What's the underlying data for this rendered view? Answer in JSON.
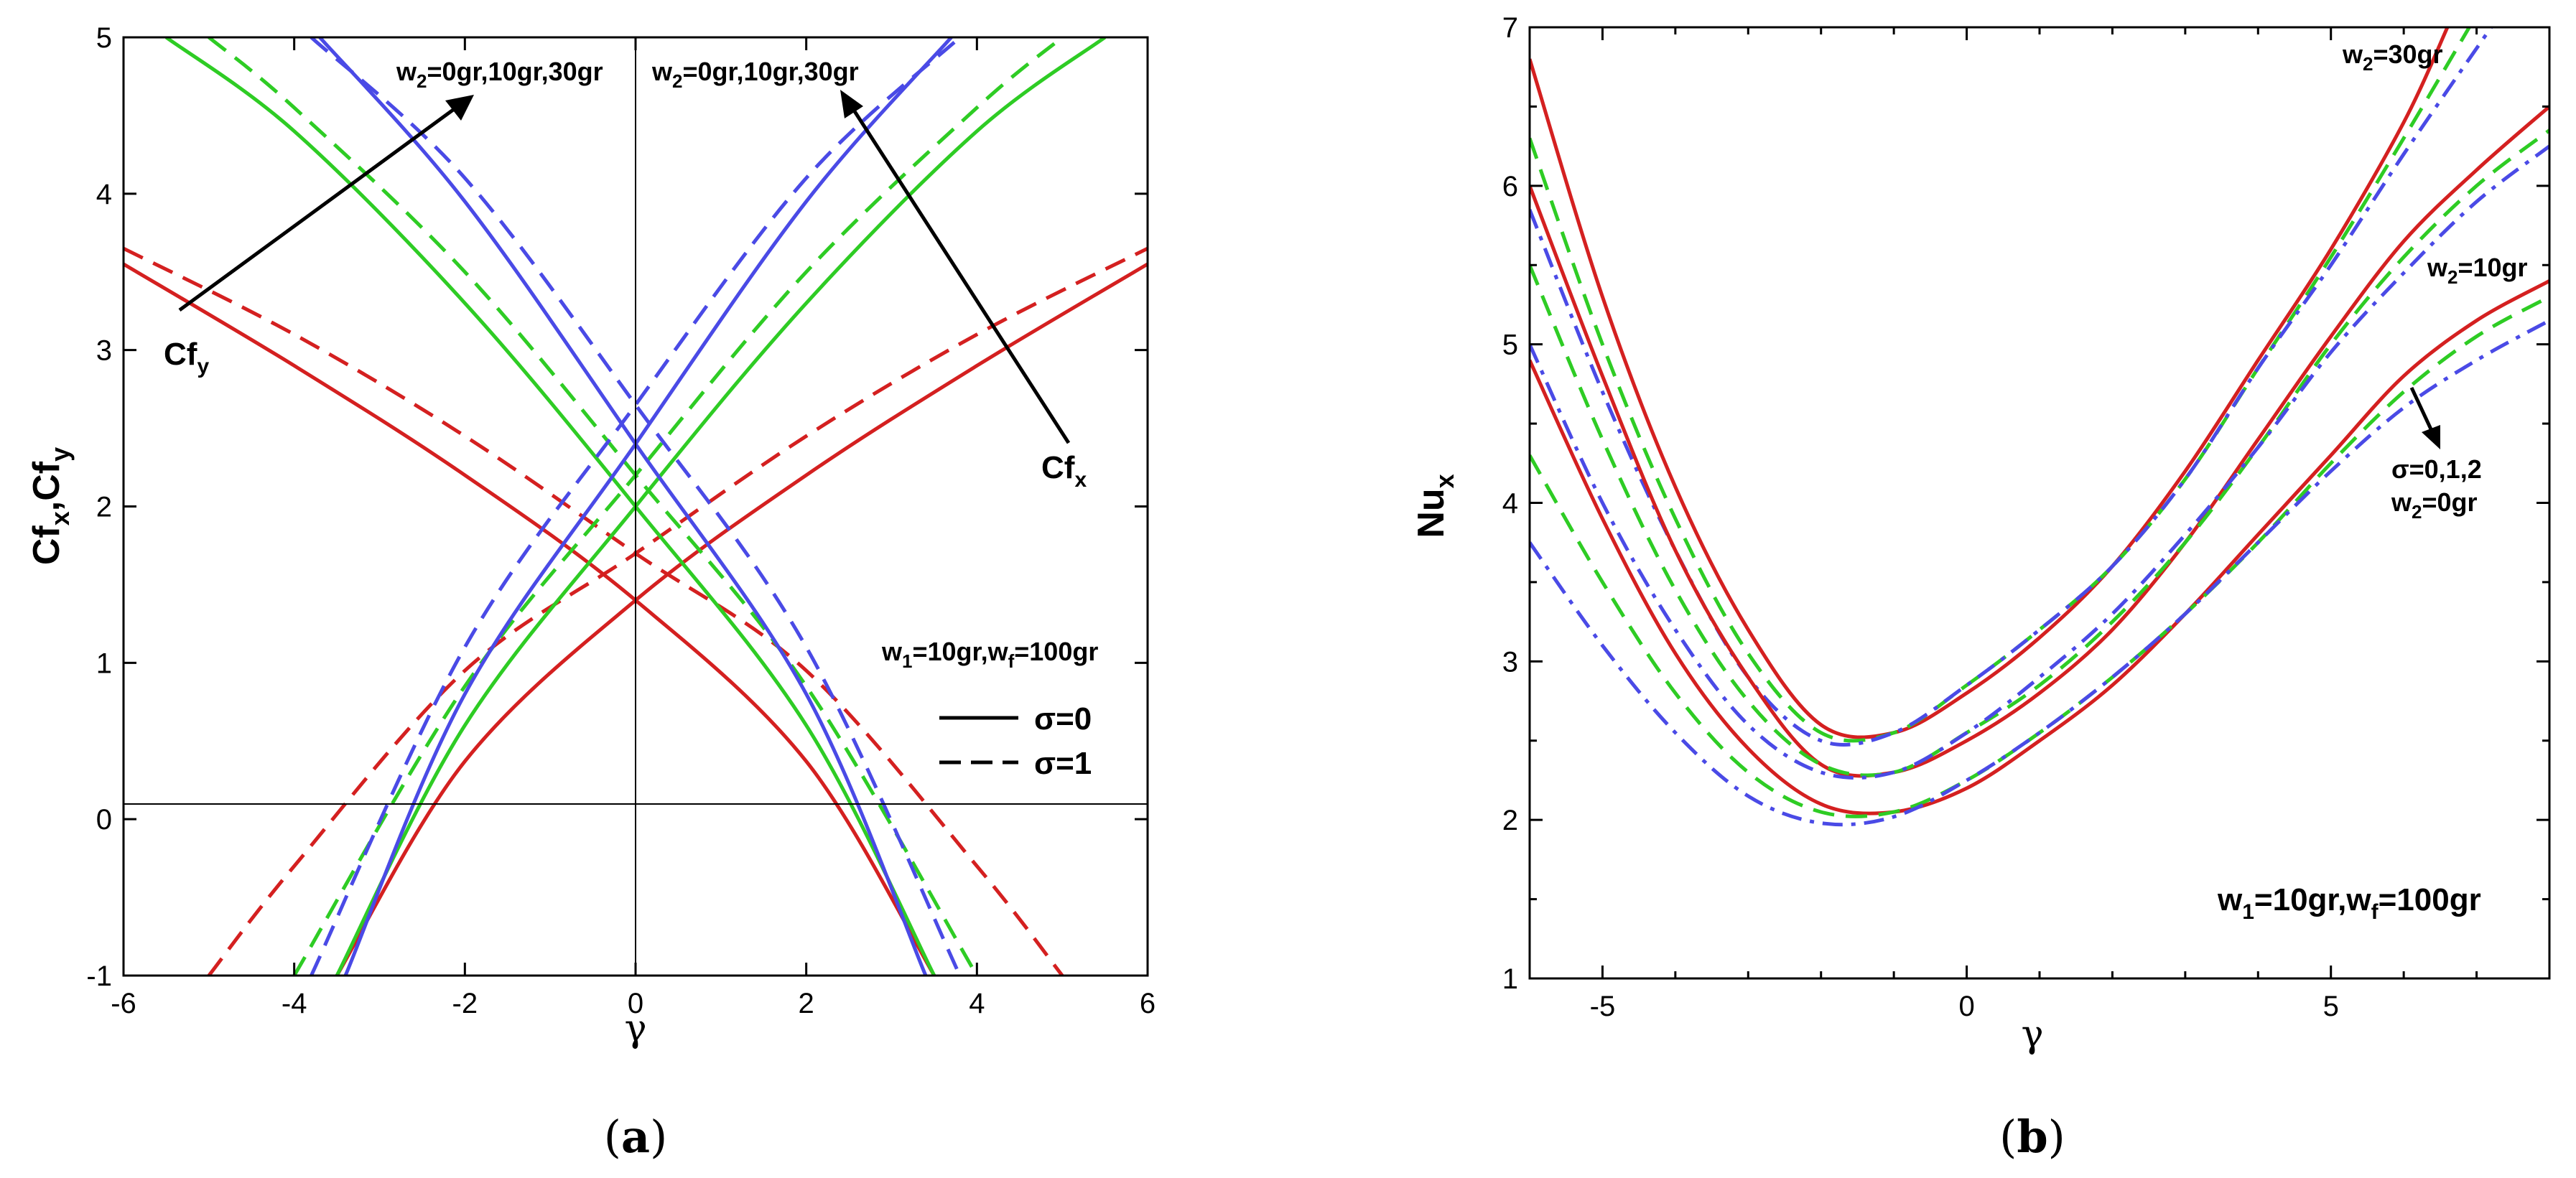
{
  "colors": {
    "red": "#d42020",
    "green": "#2ecc24",
    "blue": "#4a4ae6"
  },
  "chart_data": [
    {
      "type": "line",
      "panel_label": "(a)",
      "xlabel": "γ",
      "ylabel": "Cf",
      "ylabel_sub": "x",
      "ylabel_mid": ",Cf",
      "ylabel_sub2": "y",
      "xlim": [
        -6,
        6
      ],
      "ylim": [
        -1,
        5
      ],
      "xticks": [
        -6,
        -4,
        -2,
        0,
        2,
        4,
        6
      ],
      "yticks": [
        -1,
        0,
        1,
        2,
        3,
        4,
        5
      ],
      "conditions": {
        "w1": "w",
        "w1_sub": "1",
        "w1_val": "=10gr,w",
        "wf_sub": "f",
        "wf_val": "=100gr"
      },
      "legend": [
        {
          "label": "σ=0",
          "style": "solid"
        },
        {
          "label": "σ=1",
          "style": "dashed"
        }
      ],
      "annotations": {
        "left_w2": {
          "pre": "w",
          "sub": "2",
          "post": "=0gr,10gr,30gr"
        },
        "right_w2": {
          "pre": "w",
          "sub": "2",
          "post": "=0gr,10gr,30gr"
        },
        "cfy": {
          "pre": "Cf",
          "sub": "y"
        },
        "cfx": {
          "pre": "Cf",
          "sub": "x"
        }
      },
      "series": [
        {
          "name": "Cfx, w2=0gr, σ=0",
          "color": "red",
          "style": "solid",
          "x": [
            -3.5,
            -2,
            0,
            2,
            4,
            6
          ],
          "y": [
            -1.0,
            0.37,
            1.4,
            2.2,
            2.9,
            3.55
          ]
        },
        {
          "name": "Cfy, w2=0gr, σ=0",
          "color": "red",
          "style": "solid",
          "x": [
            -6,
            -4,
            -2,
            0,
            2,
            3.5
          ],
          "y": [
            3.55,
            2.9,
            2.2,
            1.4,
            0.37,
            -1.0
          ]
        },
        {
          "name": "Cfx, w2=0gr, σ=1",
          "color": "red",
          "style": "dashed",
          "x": [
            -5,
            -4,
            -2,
            0,
            2,
            4,
            6
          ],
          "y": [
            -1.0,
            -0.3,
            0.95,
            1.7,
            2.45,
            3.1,
            3.65
          ]
        },
        {
          "name": "Cfy, w2=0gr, σ=1",
          "color": "red",
          "style": "dashed",
          "x": [
            -6,
            -4,
            -2,
            0,
            2,
            4,
            5
          ],
          "y": [
            3.65,
            3.1,
            2.45,
            1.7,
            0.95,
            -0.3,
            -1.0
          ]
        },
        {
          "name": "Cfx, w2=10gr, σ=0",
          "color": "green",
          "style": "solid",
          "x": [
            -3.5,
            -2,
            0,
            2,
            4,
            5.5
          ],
          "y": [
            -1.0,
            0.6,
            2.0,
            3.3,
            4.4,
            5.0
          ]
        },
        {
          "name": "Cfy, w2=10gr, σ=0",
          "color": "green",
          "style": "solid",
          "x": [
            -5.5,
            -4,
            -2,
            0,
            2,
            3.5
          ],
          "y": [
            5.0,
            4.4,
            3.3,
            2.0,
            0.6,
            -1.0
          ]
        },
        {
          "name": "Cfx, w2=10gr, σ=1",
          "color": "green",
          "style": "dashed",
          "x": [
            -4,
            -2,
            0,
            2,
            4,
            5
          ],
          "y": [
            -1.0,
            0.85,
            2.2,
            3.5,
            4.55,
            5.0
          ]
        },
        {
          "name": "Cfy, w2=10gr, σ=1",
          "color": "green",
          "style": "dashed",
          "x": [
            -5,
            -4,
            -2,
            0,
            2,
            4
          ],
          "y": [
            5.0,
            4.55,
            3.5,
            2.2,
            0.85,
            -1.0
          ]
        },
        {
          "name": "Cfx, w2=30gr, σ=0",
          "color": "blue",
          "style": "solid",
          "x": [
            -3.4,
            -2,
            0,
            2,
            3.7
          ],
          "y": [
            -1.0,
            0.8,
            2.4,
            3.95,
            5.0
          ]
        },
        {
          "name": "Cfy, w2=30gr, σ=0",
          "color": "blue",
          "style": "solid",
          "x": [
            -3.7,
            -2,
            0,
            2,
            3.4
          ],
          "y": [
            5.0,
            3.95,
            2.4,
            0.8,
            -1.0
          ]
        },
        {
          "name": "Cfx, w2=30gr, σ=1",
          "color": "blue",
          "style": "dashed",
          "x": [
            -3.8,
            -2,
            0,
            2,
            3.8
          ],
          "y": [
            -1.0,
            1.1,
            2.65,
            4.1,
            5.0
          ]
        },
        {
          "name": "Cfy, w2=30gr, σ=1",
          "color": "blue",
          "style": "dashed",
          "x": [
            -3.8,
            -2,
            0,
            2,
            3.8
          ],
          "y": [
            5.0,
            4.1,
            2.65,
            1.1,
            -1.0
          ]
        }
      ]
    },
    {
      "type": "line",
      "panel_label": "(b)",
      "xlabel": "γ",
      "ylabel": "Nu",
      "ylabel_sub": "x",
      "xlim": [
        -6,
        8
      ],
      "ylim": [
        1,
        7
      ],
      "xticks": [
        -5,
        0,
        5
      ],
      "yticks": [
        1,
        2,
        3,
        4,
        5,
        6,
        7
      ],
      "conditions": {
        "w1": "w",
        "w1_sub": "1",
        "w1_val": "=10gr,w",
        "wf_sub": "f",
        "wf_val": "=100gr"
      },
      "annotations": {
        "w2_30": {
          "pre": "w",
          "sub": "2",
          "post": "=30gr"
        },
        "w2_10": {
          "pre": "w",
          "sub": "2",
          "post": "=10gr"
        },
        "sigma": "σ=0,1,2",
        "w2_0": {
          "pre": "w",
          "sub": "2",
          "post": "=0gr"
        }
      },
      "series": [
        {
          "name": "w2=30gr, σ=0",
          "color": "red",
          "style": "solid",
          "x": [
            -6,
            -5,
            -4,
            -3,
            -2,
            -1,
            0,
            1,
            2,
            3,
            4,
            5,
            6,
            6.6
          ],
          "y": [
            6.8,
            5.3,
            4.1,
            3.2,
            2.6,
            2.55,
            2.8,
            3.15,
            3.6,
            4.2,
            4.9,
            5.6,
            6.4,
            7.0
          ]
        },
        {
          "name": "w2=30gr, σ=1",
          "color": "green",
          "style": "dashed",
          "x": [
            -6,
            -5,
            -4,
            -3,
            -2,
            -1,
            0,
            1,
            2,
            3,
            4,
            5,
            6,
            6.9
          ],
          "y": [
            6.3,
            5.0,
            3.9,
            3.05,
            2.55,
            2.55,
            2.85,
            3.2,
            3.6,
            4.15,
            4.85,
            5.55,
            6.3,
            7.0
          ]
        },
        {
          "name": "w2=30gr, σ=2",
          "color": "blue",
          "style": "dashdot",
          "x": [
            -6,
            -5,
            -4,
            -3,
            -2,
            -1,
            0,
            1,
            2,
            3,
            4,
            5,
            6,
            7.2
          ],
          "y": [
            5.85,
            4.7,
            3.7,
            2.9,
            2.5,
            2.55,
            2.85,
            3.2,
            3.6,
            4.15,
            4.85,
            5.5,
            6.2,
            7.0
          ]
        },
        {
          "name": "w2=10gr, σ=0",
          "color": "red",
          "style": "solid",
          "x": [
            -6,
            -5,
            -4,
            -3,
            -2,
            -1,
            0,
            1,
            2,
            3,
            4,
            5,
            6,
            7,
            8
          ],
          "y": [
            6.0,
            4.8,
            3.7,
            2.9,
            2.35,
            2.3,
            2.5,
            2.8,
            3.2,
            3.75,
            4.4,
            5.05,
            5.65,
            6.1,
            6.5
          ]
        },
        {
          "name": "w2=10gr, σ=1",
          "color": "green",
          "style": "dashed",
          "x": [
            -6,
            -5,
            -4,
            -3,
            -2,
            -1,
            0,
            1,
            2,
            3,
            4,
            5,
            6,
            7,
            8
          ],
          "y": [
            5.5,
            4.4,
            3.45,
            2.75,
            2.35,
            2.3,
            2.55,
            2.85,
            3.25,
            3.75,
            4.35,
            5.0,
            5.55,
            6.0,
            6.35
          ]
        },
        {
          "name": "w2=10gr, σ=2",
          "color": "blue",
          "style": "dashdot",
          "x": [
            -6,
            -5,
            -4,
            -3,
            -2,
            -1,
            0,
            1,
            2,
            3,
            4,
            5,
            6,
            7,
            8
          ],
          "y": [
            5.0,
            4.0,
            3.2,
            2.6,
            2.3,
            2.3,
            2.55,
            2.9,
            3.3,
            3.8,
            4.35,
            4.95,
            5.45,
            5.9,
            6.25
          ]
        },
        {
          "name": "w2=0gr, σ=0",
          "color": "red",
          "style": "solid",
          "x": [
            -6,
            -5,
            -4,
            -3,
            -2,
            -1,
            0,
            1,
            2,
            3,
            4,
            5,
            6,
            7,
            8
          ],
          "y": [
            4.9,
            3.9,
            3.05,
            2.45,
            2.1,
            2.05,
            2.2,
            2.5,
            2.85,
            3.3,
            3.8,
            4.3,
            4.8,
            5.15,
            5.4
          ]
        },
        {
          "name": "w2=0gr, σ=1",
          "color": "green",
          "style": "dashed",
          "x": [
            -6,
            -5,
            -4,
            -3,
            -2,
            -1,
            0,
            1,
            2,
            3,
            4,
            5,
            6,
            7,
            8
          ],
          "y": [
            4.3,
            3.5,
            2.8,
            2.3,
            2.05,
            2.05,
            2.25,
            2.55,
            2.9,
            3.3,
            3.75,
            4.25,
            4.7,
            5.05,
            5.3
          ]
        },
        {
          "name": "w2=0gr, σ=2",
          "color": "blue",
          "style": "dashdot",
          "x": [
            -6,
            -5,
            -4,
            -3,
            -2,
            -1,
            0,
            1,
            2,
            3,
            4,
            5,
            6,
            7,
            8
          ],
          "y": [
            3.75,
            3.1,
            2.55,
            2.15,
            1.98,
            2.02,
            2.25,
            2.55,
            2.9,
            3.3,
            3.75,
            4.2,
            4.6,
            4.9,
            5.15
          ]
        }
      ]
    }
  ]
}
